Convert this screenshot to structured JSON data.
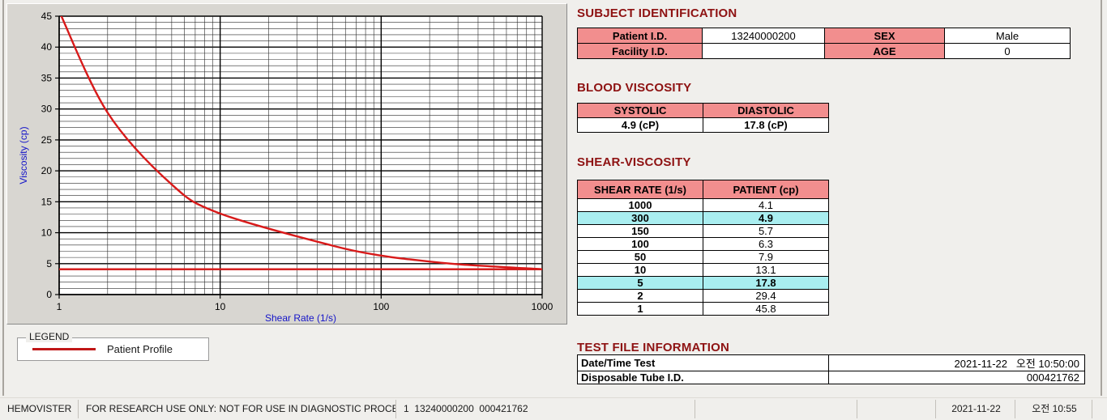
{
  "colors": {
    "section_title": "#8e1212",
    "table_header_pink": "#f28e8e",
    "highlight_cyan": "#a9eef0",
    "curve_red": "#d81a1a",
    "axis_label_blue": "#1414c8"
  },
  "legend": {
    "caption": "LEGEND",
    "entry": "Patient Profile"
  },
  "subject": {
    "title": "SUBJECT IDENTIFICATION",
    "rows": [
      {
        "label": "Patient I.D.",
        "value": "13240000200",
        "label2": "SEX",
        "value2": "Male"
      },
      {
        "label": "Facility I.D.",
        "value": "",
        "label2": "AGE",
        "value2": "0"
      }
    ]
  },
  "blood": {
    "title": "BLOOD VISCOSITY",
    "headers": [
      "SYSTOLIC",
      "DIASTOLIC"
    ],
    "values": [
      "4.9 (cP)",
      "17.8 (cP)"
    ]
  },
  "shear": {
    "title": "SHEAR-VISCOSITY",
    "headers": [
      "SHEAR RATE (1/s)",
      "PATIENT (cp)"
    ],
    "rows": [
      [
        "1000",
        "4.1"
      ],
      [
        "300",
        "4.9"
      ],
      [
        "150",
        "5.7"
      ],
      [
        "100",
        "6.3"
      ],
      [
        "50",
        "7.9"
      ],
      [
        "10",
        "13.1"
      ],
      [
        "5",
        "17.8"
      ],
      [
        "2",
        "29.4"
      ],
      [
        "1",
        "45.8"
      ]
    ],
    "highlighted_rows": [
      1,
      6
    ]
  },
  "testfile": {
    "title": "TEST FILE INFORMATION",
    "rows": [
      [
        "Date/Time Test",
        "2021-11-22   오전 10:50:00"
      ],
      [
        "Disposable Tube I.D.",
        "000421762"
      ]
    ]
  },
  "statusbar": {
    "app": "HEMOVISTER",
    "notice": "FOR RESEARCH USE ONLY: NOT FOR USE IN DIAGNOSTIC PROCEDURES",
    "record": "1  13240000200  000421762",
    "date": "2021-11-22",
    "time": "오전 10:55"
  },
  "chart_data": {
    "type": "line",
    "xscale": "log",
    "x": [
      1,
      2,
      5,
      10,
      50,
      100,
      150,
      300,
      1000
    ],
    "series": [
      {
        "name": "Patient Profile",
        "values": [
          45.8,
          29.4,
          17.8,
          13.1,
          7.9,
          6.3,
          5.7,
          4.9,
          4.1
        ]
      }
    ],
    "baseline": 4.1,
    "xlim": [
      1,
      1000
    ],
    "ylim": [
      0,
      45
    ],
    "y_major_step": 5,
    "y_minor_step": 1,
    "x_tick_labels": [
      "1",
      "10",
      "100",
      "1000"
    ],
    "xlabel": "Shear Rate (1/s)",
    "ylabel": "Viscosity (cp)",
    "grid": true,
    "line_color": "#d81a1a",
    "axis_title_color": "#1414c8"
  }
}
